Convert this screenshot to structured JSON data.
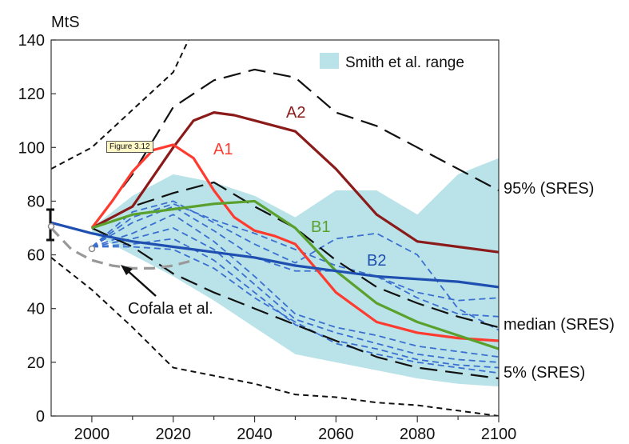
{
  "figure_tag": "Figure 3.12",
  "chart_data": {
    "type": "line",
    "ylabel": "MtS",
    "xlim": [
      1990,
      2100
    ],
    "ylim": [
      0,
      140
    ],
    "x_ticks": [
      "2000",
      "2020",
      "2040",
      "2060",
      "2080",
      "2100"
    ],
    "y_ticks": [
      "0",
      "20",
      "40",
      "60",
      "80",
      "100",
      "120",
      "140"
    ],
    "legend": [
      {
        "label": "Smith et al. range",
        "color": "#b9e3e8",
        "placement": "top-right"
      }
    ],
    "labels": {
      "a2": "A2",
      "a1": "A1",
      "b1": "B1",
      "b2": "B2",
      "p95": "95% (SRES)",
      "median": "median (SRES)",
      "p5": "5% (SRES)",
      "cofala": "Cofala et al."
    },
    "colors": {
      "a2": "#8b1a1a",
      "a1": "#ff3b30",
      "b1": "#5aa02c",
      "b2": "#1f4fb0",
      "dash_blue": "#3a6fd0",
      "range": "#b9e3e8"
    },
    "range_band": {
      "upper": [
        [
          2000,
          70
        ],
        [
          2010,
          82
        ],
        [
          2020,
          90
        ],
        [
          2030,
          87
        ],
        [
          2040,
          82
        ],
        [
          2050,
          74
        ],
        [
          2060,
          84
        ],
        [
          2070,
          84
        ],
        [
          2080,
          75
        ],
        [
          2090,
          90
        ],
        [
          2100,
          96
        ]
      ],
      "lower": [
        [
          2000,
          68
        ],
        [
          2010,
          60
        ],
        [
          2020,
          52
        ],
        [
          2030,
          43
        ],
        [
          2040,
          33
        ],
        [
          2050,
          23
        ],
        [
          2060,
          20
        ],
        [
          2070,
          17
        ],
        [
          2080,
          14
        ],
        [
          2090,
          12
        ],
        [
          2100,
          11
        ]
      ]
    },
    "series": [
      {
        "name": "A2",
        "key": "a2",
        "style": "solid",
        "points": [
          [
            2000,
            70
          ],
          [
            2010,
            78
          ],
          [
            2020,
            100
          ],
          [
            2025,
            110
          ],
          [
            2030,
            113
          ],
          [
            2035,
            112
          ],
          [
            2040,
            110
          ],
          [
            2050,
            106
          ],
          [
            2060,
            92
          ],
          [
            2070,
            75
          ],
          [
            2080,
            65
          ],
          [
            2090,
            63
          ],
          [
            2100,
            61
          ]
        ]
      },
      {
        "name": "A1",
        "key": "a1",
        "style": "solid",
        "points": [
          [
            2000,
            70
          ],
          [
            2005,
            80
          ],
          [
            2010,
            91
          ],
          [
            2015,
            99
          ],
          [
            2020,
            101
          ],
          [
            2025,
            96
          ],
          [
            2030,
            84
          ],
          [
            2035,
            74
          ],
          [
            2040,
            69
          ],
          [
            2045,
            67
          ],
          [
            2050,
            64
          ],
          [
            2060,
            46
          ],
          [
            2070,
            35
          ],
          [
            2080,
            31
          ],
          [
            2090,
            29
          ],
          [
            2100,
            28
          ]
        ]
      },
      {
        "name": "B1",
        "key": "b1",
        "style": "solid",
        "points": [
          [
            2000,
            70
          ],
          [
            2010,
            75
          ],
          [
            2020,
            77
          ],
          [
            2030,
            79
          ],
          [
            2040,
            80
          ],
          [
            2050,
            70
          ],
          [
            2060,
            54
          ],
          [
            2070,
            42
          ],
          [
            2080,
            35
          ],
          [
            2090,
            30
          ],
          [
            2100,
            25
          ]
        ]
      },
      {
        "name": "B2",
        "key": "b2",
        "style": "solid",
        "points": [
          [
            1990,
            72
          ],
          [
            2000,
            68
          ],
          [
            2010,
            65
          ],
          [
            2020,
            63
          ],
          [
            2030,
            61
          ],
          [
            2040,
            59
          ],
          [
            2050,
            56
          ],
          [
            2060,
            54
          ],
          [
            2070,
            52
          ],
          [
            2080,
            51
          ],
          [
            2090,
            50
          ],
          [
            2100,
            48
          ]
        ]
      },
      {
        "name": "Cofala et al.",
        "key": "cofala",
        "style": "gray-dashed",
        "points": [
          [
            1990,
            70
          ],
          [
            1995,
            62
          ],
          [
            2000,
            58
          ],
          [
            2005,
            56
          ],
          [
            2010,
            55
          ],
          [
            2015,
            55
          ],
          [
            2020,
            56
          ],
          [
            2025,
            58
          ]
        ]
      },
      {
        "name": "95% (SRES)",
        "key": "p95",
        "style": "black-long-dash",
        "points": [
          [
            2000,
            70
          ],
          [
            2010,
            90
          ],
          [
            2020,
            115
          ],
          [
            2030,
            125
          ],
          [
            2040,
            129
          ],
          [
            2050,
            126
          ],
          [
            2060,
            113
          ],
          [
            2070,
            108
          ],
          [
            2080,
            100
          ],
          [
            2090,
            92
          ],
          [
            2100,
            84
          ]
        ]
      },
      {
        "name": "median (SRES)",
        "key": "median",
        "style": "black-long-dash",
        "points": [
          [
            2000,
            70
          ],
          [
            2010,
            78
          ],
          [
            2020,
            83
          ],
          [
            2030,
            87
          ],
          [
            2040,
            78
          ],
          [
            2050,
            70
          ],
          [
            2060,
            58
          ],
          [
            2070,
            48
          ],
          [
            2080,
            42
          ],
          [
            2090,
            37
          ],
          [
            2100,
            33
          ]
        ]
      },
      {
        "name": "5% (SRES)",
        "key": "p5",
        "style": "black-long-dash",
        "points": [
          [
            2000,
            70
          ],
          [
            2010,
            63
          ],
          [
            2020,
            53
          ],
          [
            2030,
            46
          ],
          [
            2040,
            40
          ],
          [
            2050,
            34
          ],
          [
            2060,
            28
          ],
          [
            2070,
            22
          ],
          [
            2080,
            18
          ],
          [
            2090,
            16
          ],
          [
            2100,
            14
          ]
        ]
      },
      {
        "name": "",
        "key": "outer_upper",
        "style": "black-short-dash",
        "points": [
          [
            1990,
            92
          ],
          [
            2000,
            100
          ],
          [
            2010,
            114
          ],
          [
            2020,
            128
          ],
          [
            2030,
            160
          ]
        ]
      },
      {
        "name": "",
        "key": "outer_lower",
        "style": "black-short-dash",
        "points": [
          [
            1990,
            59
          ],
          [
            2000,
            47
          ],
          [
            2010,
            33
          ],
          [
            2020,
            18
          ],
          [
            2030,
            15
          ],
          [
            2040,
            12
          ],
          [
            2050,
            8
          ],
          [
            2060,
            7
          ],
          [
            2070,
            5
          ],
          [
            2080,
            4
          ],
          [
            2090,
            2
          ],
          [
            2100,
            0
          ]
        ]
      },
      {
        "name": "",
        "key": "blue1",
        "style": "blue-dashed",
        "points": [
          [
            2000,
            63
          ],
          [
            2010,
            76
          ],
          [
            2020,
            80
          ],
          [
            2030,
            72
          ],
          [
            2040,
            64
          ],
          [
            2050,
            57
          ],
          [
            2060,
            66
          ],
          [
            2070,
            68
          ],
          [
            2080,
            60
          ],
          [
            2090,
            40
          ],
          [
            2100,
            32
          ]
        ]
      },
      {
        "name": "",
        "key": "blue2",
        "style": "blue-dashed",
        "points": [
          [
            2000,
            63
          ],
          [
            2010,
            74
          ],
          [
            2020,
            79
          ],
          [
            2030,
            73
          ],
          [
            2040,
            68
          ],
          [
            2050,
            62
          ],
          [
            2060,
            56
          ],
          [
            2070,
            52
          ],
          [
            2080,
            46
          ],
          [
            2090,
            43
          ],
          [
            2100,
            44
          ]
        ]
      },
      {
        "name": "",
        "key": "blue3",
        "style": "blue-dashed",
        "points": [
          [
            2000,
            63
          ],
          [
            2010,
            72
          ],
          [
            2020,
            78
          ],
          [
            2030,
            69
          ],
          [
            2040,
            59
          ],
          [
            2050,
            54
          ],
          [
            2060,
            54
          ],
          [
            2070,
            52
          ],
          [
            2080,
            44
          ],
          [
            2090,
            38
          ],
          [
            2100,
            37
          ]
        ]
      },
      {
        "name": "",
        "key": "blue4",
        "style": "blue-dashed",
        "points": [
          [
            2000,
            63
          ],
          [
            2010,
            68
          ],
          [
            2020,
            75
          ],
          [
            2030,
            65
          ],
          [
            2040,
            52
          ],
          [
            2050,
            38
          ],
          [
            2060,
            33
          ],
          [
            2070,
            30
          ],
          [
            2080,
            26
          ],
          [
            2090,
            24
          ],
          [
            2100,
            22
          ]
        ]
      },
      {
        "name": "",
        "key": "blue5",
        "style": "blue-dashed",
        "points": [
          [
            2000,
            63
          ],
          [
            2010,
            66
          ],
          [
            2020,
            70
          ],
          [
            2030,
            62
          ],
          [
            2040,
            49
          ],
          [
            2050,
            36
          ],
          [
            2060,
            31
          ],
          [
            2070,
            27
          ],
          [
            2080,
            23
          ],
          [
            2090,
            21
          ],
          [
            2100,
            20
          ]
        ]
      },
      {
        "name": "",
        "key": "blue6",
        "style": "blue-dashed",
        "points": [
          [
            2000,
            63
          ],
          [
            2010,
            64
          ],
          [
            2020,
            66
          ],
          [
            2030,
            58
          ],
          [
            2040,
            46
          ],
          [
            2050,
            34
          ],
          [
            2060,
            28
          ],
          [
            2070,
            25
          ],
          [
            2080,
            21
          ],
          [
            2090,
            19
          ],
          [
            2100,
            18
          ]
        ]
      },
      {
        "name": "",
        "key": "blue7",
        "style": "blue-dashed",
        "points": [
          [
            2000,
            63
          ],
          [
            2010,
            63
          ],
          [
            2020,
            62
          ],
          [
            2030,
            55
          ],
          [
            2040,
            44
          ],
          [
            2050,
            35
          ],
          [
            2060,
            27
          ],
          [
            2070,
            23
          ],
          [
            2080,
            20
          ],
          [
            2090,
            18
          ],
          [
            2100,
            16
          ]
        ]
      }
    ]
  }
}
